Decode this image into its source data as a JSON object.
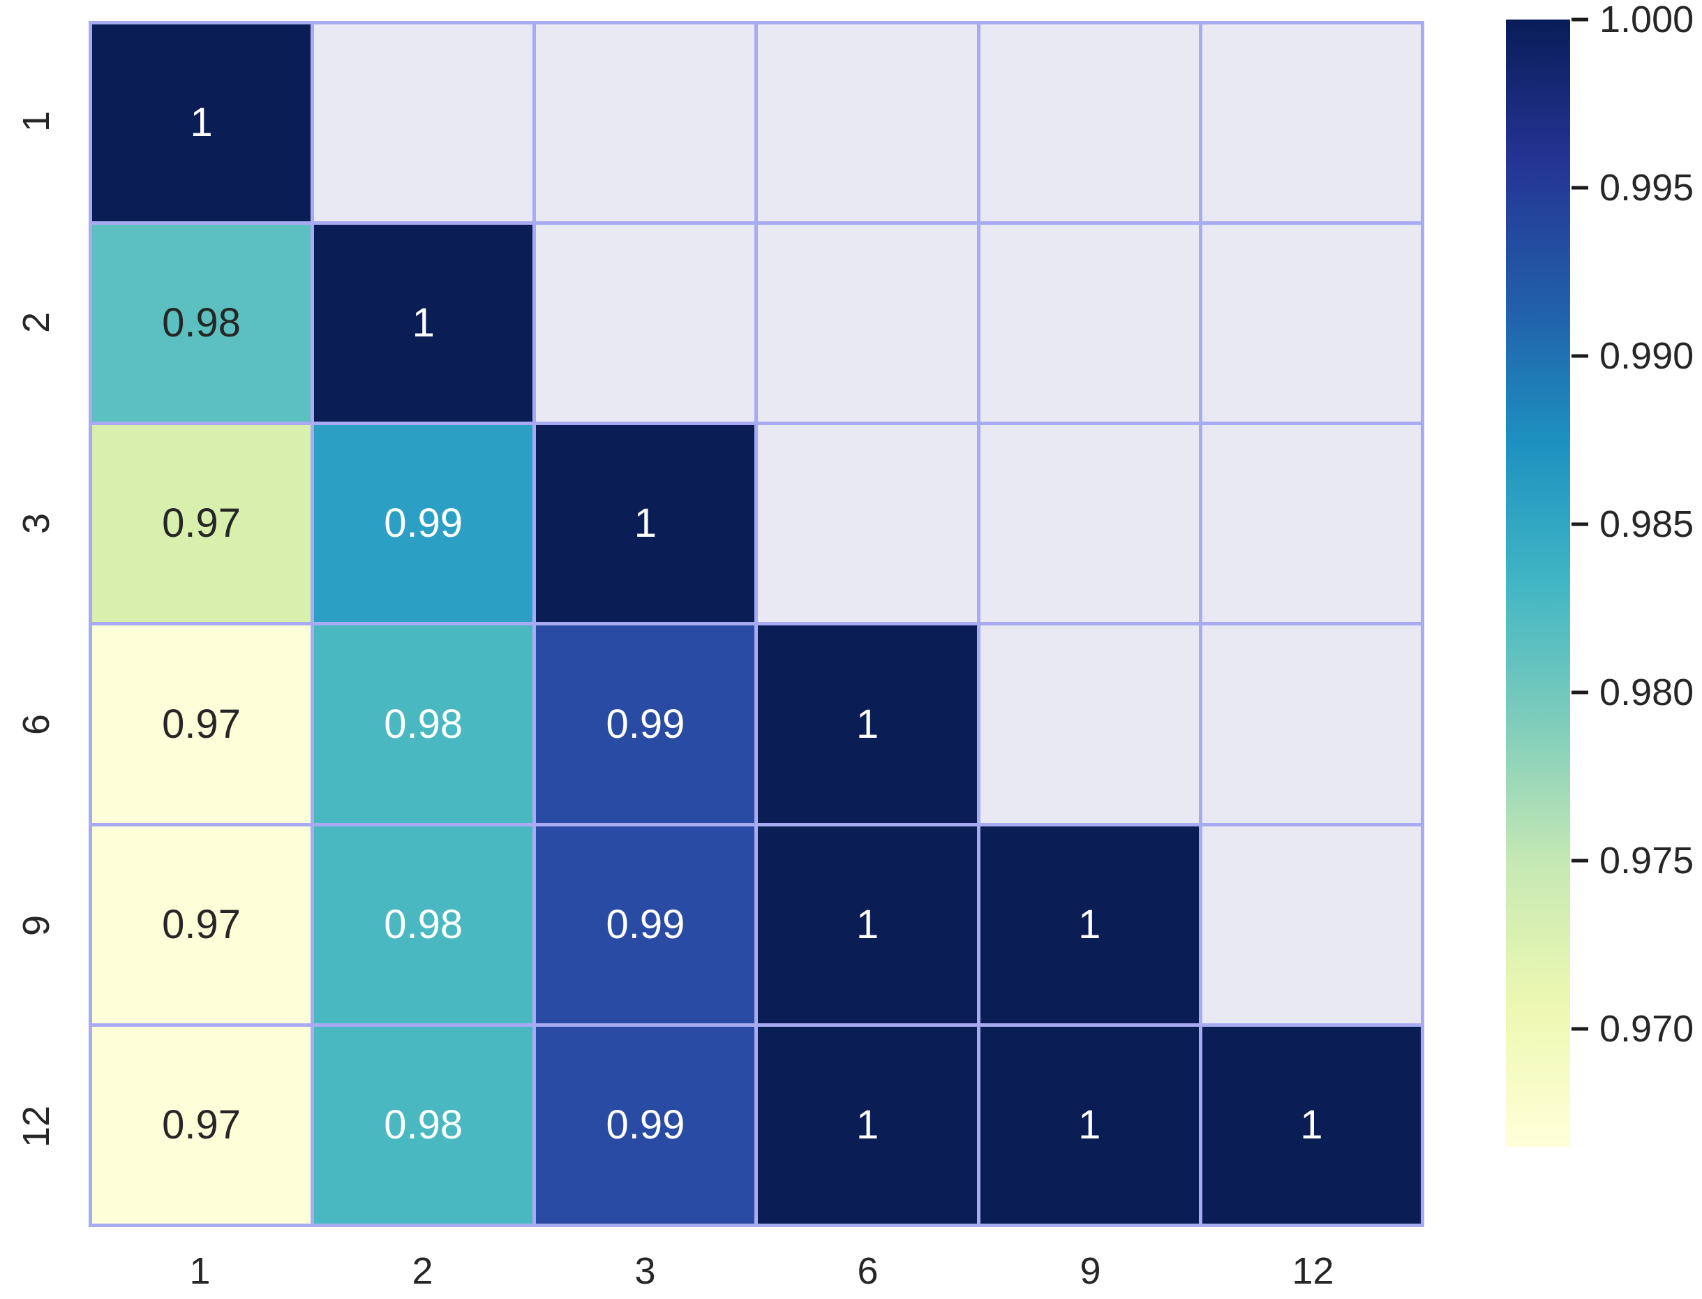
{
  "chart_data": {
    "type": "heatmap",
    "title": "",
    "xlabel": "",
    "ylabel": "",
    "x_categories": [
      "1",
      "2",
      "3",
      "6",
      "9",
      "12"
    ],
    "y_categories": [
      "1",
      "2",
      "3",
      "6",
      "9",
      "12"
    ],
    "matrix": [
      [
        1,
        null,
        null,
        null,
        null,
        null
      ],
      [
        0.98,
        1,
        null,
        null,
        null,
        null
      ],
      [
        0.97,
        0.99,
        1,
        null,
        null,
        null
      ],
      [
        0.97,
        0.98,
        0.99,
        1,
        null,
        null
      ],
      [
        0.97,
        0.98,
        0.99,
        1,
        1,
        null
      ],
      [
        0.97,
        0.98,
        0.99,
        1,
        1,
        1
      ]
    ],
    "cells": [
      [
        {
          "label": "1",
          "bg": "#0a1d55",
          "fg": "#ffffff"
        },
        null,
        null,
        null,
        null,
        null
      ],
      [
        {
          "label": "0.98",
          "bg": "#5bc0bf",
          "fg": "#262626"
        },
        {
          "label": "1",
          "bg": "#0a1d55",
          "fg": "#ffffff"
        },
        null,
        null,
        null,
        null
      ],
      [
        {
          "label": "0.97",
          "bg": "#d9efad",
          "fg": "#262626"
        },
        {
          "label": "0.99",
          "bg": "#2b9fc4",
          "fg": "#ffffff"
        },
        {
          "label": "1",
          "bg": "#0a1d55",
          "fg": "#ffffff"
        },
        null,
        null,
        null
      ],
      [
        {
          "label": "0.97",
          "bg": "#fdffd9",
          "fg": "#262626"
        },
        {
          "label": "0.98",
          "bg": "#49b8c1",
          "fg": "#ffffff"
        },
        {
          "label": "0.99",
          "bg": "#2a4ba3",
          "fg": "#ffffff"
        },
        {
          "label": "1",
          "bg": "#0a1d55",
          "fg": "#ffffff"
        },
        null,
        null
      ],
      [
        {
          "label": "0.97",
          "bg": "#fdffd9",
          "fg": "#262626"
        },
        {
          "label": "0.98",
          "bg": "#49b8c1",
          "fg": "#ffffff"
        },
        {
          "label": "0.99",
          "bg": "#2a4ba3",
          "fg": "#ffffff"
        },
        {
          "label": "1",
          "bg": "#0a1d55",
          "fg": "#ffffff"
        },
        {
          "label": "1",
          "bg": "#0a1d55",
          "fg": "#ffffff"
        },
        null
      ],
      [
        {
          "label": "0.97",
          "bg": "#fdffd9",
          "fg": "#262626"
        },
        {
          "label": "0.98",
          "bg": "#49b8c1",
          "fg": "#ffffff"
        },
        {
          "label": "0.99",
          "bg": "#2a4ba3",
          "fg": "#ffffff"
        },
        {
          "label": "1",
          "bg": "#0a1d55",
          "fg": "#ffffff"
        },
        {
          "label": "1",
          "bg": "#0a1d55",
          "fg": "#ffffff"
        },
        {
          "label": "1",
          "bg": "#0a1d55",
          "fg": "#ffffff"
        }
      ]
    ],
    "mask_color": "#e8e9f3",
    "grid_color": "#a8abf2",
    "grid_on": true,
    "legend_position": "right",
    "colorbar": {
      "colormap": "YlGnBu",
      "vmin": 0.9665,
      "vmax": 1.0,
      "ticks": [
        {
          "value": 1.0,
          "label": "1.000"
        },
        {
          "value": 0.995,
          "label": "0.995"
        },
        {
          "value": 0.99,
          "label": "0.990"
        },
        {
          "value": 0.985,
          "label": "0.985"
        },
        {
          "value": 0.98,
          "label": "0.980"
        },
        {
          "value": 0.975,
          "label": "0.975"
        },
        {
          "value": 0.97,
          "label": "0.970"
        }
      ],
      "gradient_top_to_bottom": [
        "#081d58",
        "#253494",
        "#225ea8",
        "#1d91c0",
        "#41b6c4",
        "#7fcdbb",
        "#c7e9b4",
        "#edf8b1",
        "#ffffd9"
      ]
    },
    "annotation_colors": {
      "on_dark": "#ffffff",
      "on_light": "#262626"
    },
    "axis_tick_color": "#262626"
  }
}
